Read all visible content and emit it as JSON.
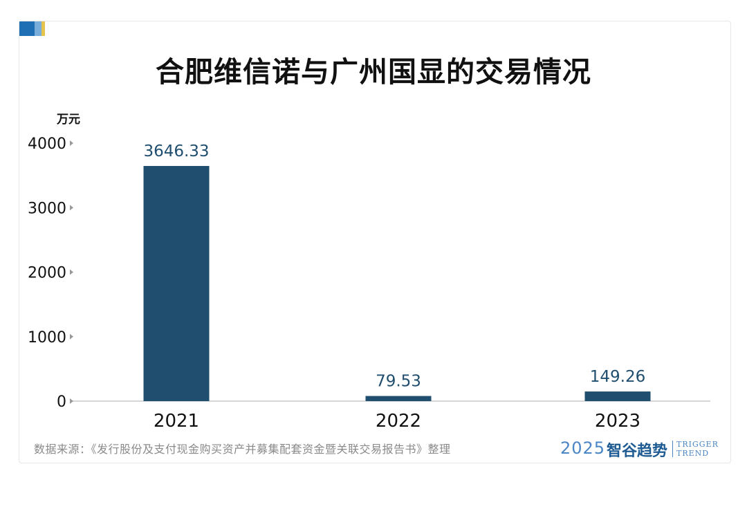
{
  "title": "合肥维信诺与广州国显的交易情况",
  "unit": "万元",
  "source": "数据来源：《发行股份及支付现金购买资产并募集配套资金暨关联交易报告书》整理",
  "logo": {
    "year": "2025",
    "name_cn": "智谷趋势",
    "name_en_line1": "TRIGGER",
    "name_en_line2": "TREND"
  },
  "colors": {
    "bar": "#1f4e6e",
    "data_label": "#1f4e6e",
    "accent": [
      "#1f6fb5",
      "#79aedb",
      "#e6c34d"
    ]
  },
  "chart_data": {
    "type": "bar",
    "categories": [
      "2021",
      "2022",
      "2023"
    ],
    "values": [
      3646.33,
      79.53,
      149.26
    ],
    "data_labels": [
      "3646.33",
      "79.53",
      "149.26"
    ],
    "yticks": [
      "0",
      "1000",
      "2000",
      "3000",
      "4000"
    ],
    "ylim": [
      0,
      4000
    ],
    "ylabel": "万元",
    "grid": false,
    "legend": "none"
  }
}
